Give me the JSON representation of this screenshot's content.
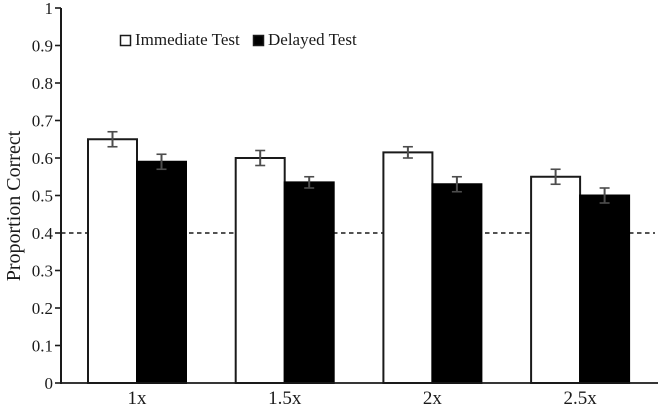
{
  "figure": {
    "background": "#ffffff"
  },
  "chart_data": {
    "type": "bar",
    "title": "",
    "xlabel": "",
    "ylabel": "Proportion Correct",
    "categories": [
      "1x",
      "1.5x",
      "2x",
      "2.5x"
    ],
    "series": [
      {
        "name": "Immediate Test",
        "fill": "#ffffff",
        "stroke": "#1a1a1a",
        "values": [
          0.65,
          0.6,
          0.615,
          0.55
        ],
        "errors": [
          0.02,
          0.02,
          0.015,
          0.02
        ]
      },
      {
        "name": "Delayed Test",
        "fill": "#000000",
        "stroke": "#000000",
        "values": [
          0.59,
          0.535,
          0.53,
          0.5
        ],
        "errors": [
          0.02,
          0.015,
          0.02,
          0.02
        ]
      }
    ],
    "ylim": [
      0,
      1
    ],
    "yticks": [
      {
        "value": 0,
        "label": "0"
      },
      {
        "value": 0.1,
        "label": "0.1"
      },
      {
        "value": 0.2,
        "label": "0.2"
      },
      {
        "value": 0.3,
        "label": "0.3"
      },
      {
        "value": 0.4,
        "label": "0.4"
      },
      {
        "value": 0.5,
        "label": "0.5"
      },
      {
        "value": 0.6,
        "label": "0.6"
      },
      {
        "value": 0.7,
        "label": "0.7"
      },
      {
        "value": 0.8,
        "label": "0.8"
      },
      {
        "value": 0.9,
        "label": "0.9"
      },
      {
        "value": 1,
        "label": "1"
      }
    ],
    "reference_line": {
      "value": 0.4,
      "style": "dashed",
      "color": "#1a1a1a"
    },
    "legend": {
      "position": "top",
      "entries": [
        "Immediate Test",
        "Delayed Test"
      ]
    },
    "grid": false,
    "colors": {
      "axis": "#1a1a1a",
      "text": "#1a1a1a",
      "error_bar": "#4d4d4d",
      "background": "#ffffff"
    }
  }
}
